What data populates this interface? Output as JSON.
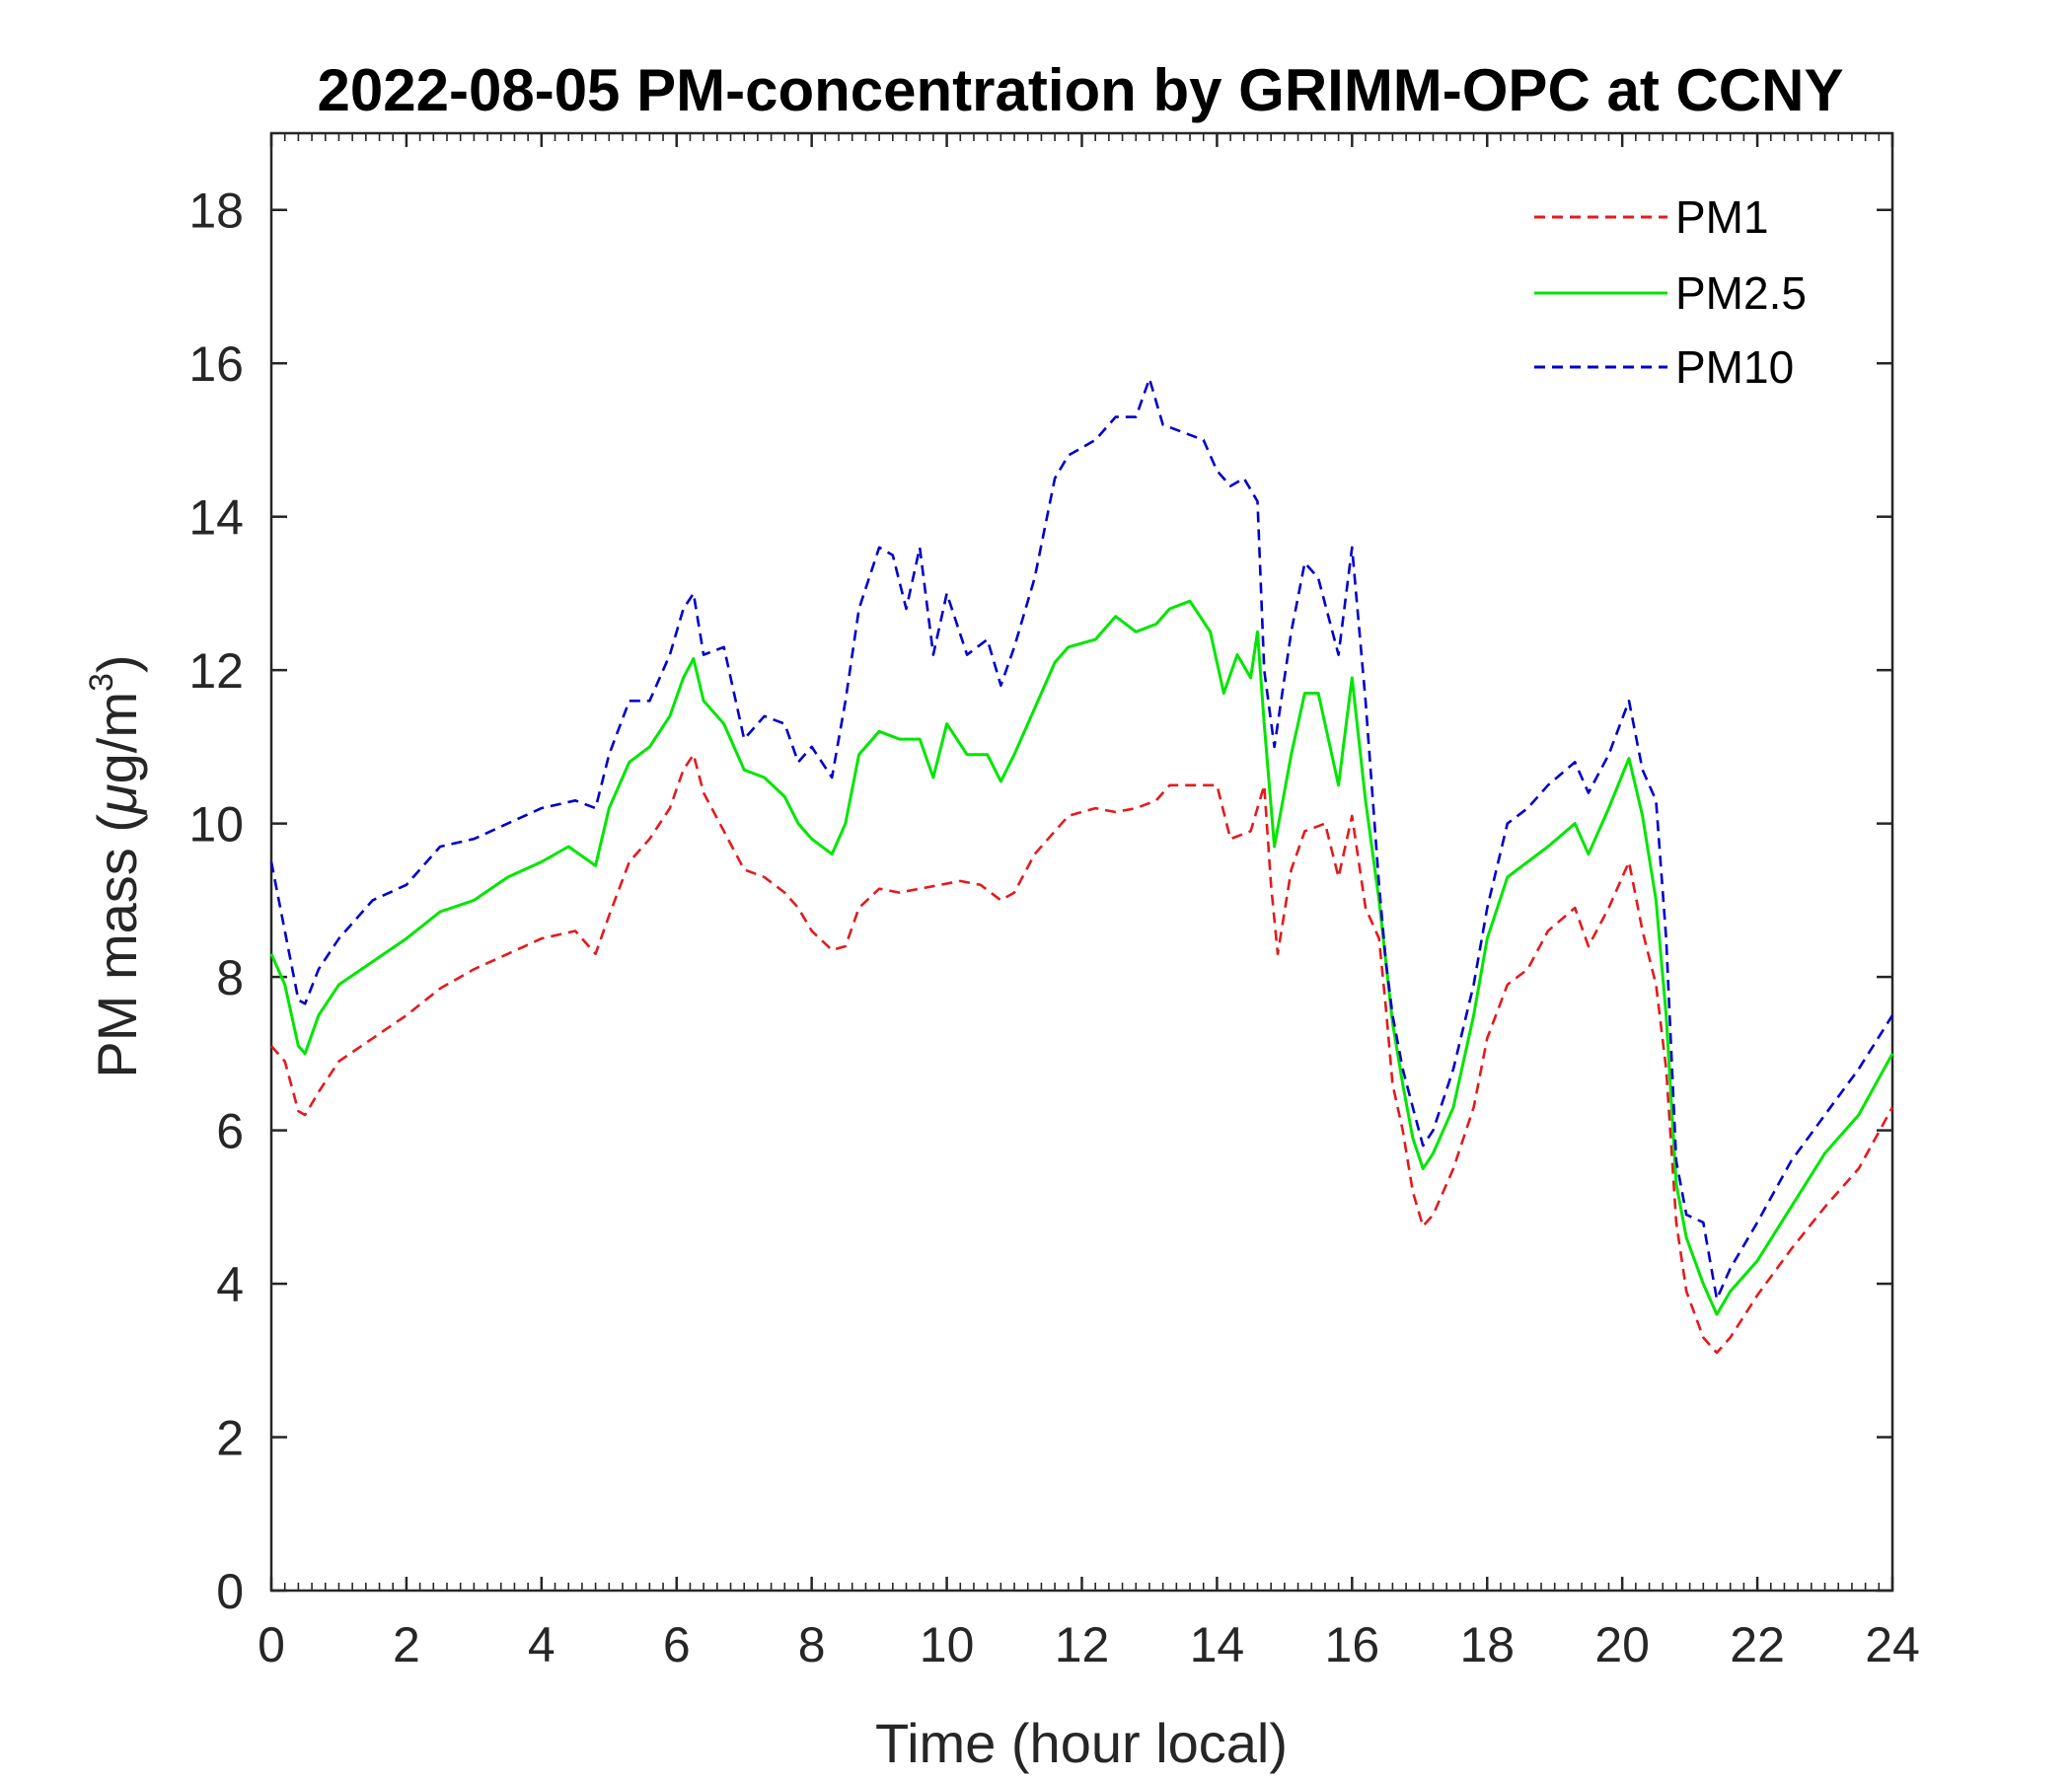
{
  "colors": {
    "pm1": "#e41a1c",
    "pm25": "#00e600",
    "pm10": "#0000cc",
    "axis": "#262626"
  },
  "chart_data": {
    "type": "line",
    "title": "2022-08-05 PM-concentration by GRIMM-OPC at CCNY",
    "xlabel": "Time (hour local)",
    "ylabel_main": "PM mass (",
    "ylabel_mu": "μ",
    "ylabel_unit": "g/m",
    "ylabel_sup": "3",
    "ylabel_close": ")",
    "xlim": [
      0,
      24
    ],
    "ylim": [
      0,
      19
    ],
    "xticks": [
      0,
      2,
      4,
      6,
      8,
      10,
      12,
      14,
      16,
      18,
      20,
      22,
      24
    ],
    "yticks": [
      0,
      2,
      4,
      6,
      8,
      10,
      12,
      14,
      16,
      18
    ],
    "xtick_labels": [
      "0",
      "2",
      "4",
      "6",
      "8",
      "10",
      "12",
      "14",
      "16",
      "18",
      "20",
      "22",
      "24"
    ],
    "ytick_labels": [
      "0",
      "2",
      "4",
      "6",
      "8",
      "10",
      "12",
      "14",
      "16",
      "18"
    ],
    "legend_position": "top-right",
    "series": [
      {
        "name": "PM1",
        "style": "dashed",
        "color_key": "pm1",
        "points": [
          [
            0,
            7.1
          ],
          [
            0.2,
            6.9
          ],
          [
            0.4,
            6.25
          ],
          [
            0.5,
            6.2
          ],
          [
            0.7,
            6.5
          ],
          [
            1.0,
            6.9
          ],
          [
            1.5,
            7.2
          ],
          [
            2.0,
            7.5
          ],
          [
            2.5,
            7.85
          ],
          [
            3.0,
            8.1
          ],
          [
            3.5,
            8.3
          ],
          [
            4.0,
            8.5
          ],
          [
            4.5,
            8.6
          ],
          [
            4.8,
            8.3
          ],
          [
            5.0,
            8.8
          ],
          [
            5.3,
            9.5
          ],
          [
            5.6,
            9.8
          ],
          [
            5.9,
            10.2
          ],
          [
            6.1,
            10.7
          ],
          [
            6.25,
            10.9
          ],
          [
            6.4,
            10.4
          ],
          [
            6.7,
            9.9
          ],
          [
            7.0,
            9.4
          ],
          [
            7.3,
            9.3
          ],
          [
            7.6,
            9.1
          ],
          [
            7.8,
            8.9
          ],
          [
            8.0,
            8.6
          ],
          [
            8.3,
            8.35
          ],
          [
            8.5,
            8.4
          ],
          [
            8.7,
            8.9
          ],
          [
            9.0,
            9.15
          ],
          [
            9.3,
            9.1
          ],
          [
            9.6,
            9.15
          ],
          [
            9.9,
            9.2
          ],
          [
            10.2,
            9.25
          ],
          [
            10.5,
            9.2
          ],
          [
            10.8,
            9.0
          ],
          [
            11.0,
            9.1
          ],
          [
            11.3,
            9.6
          ],
          [
            11.6,
            9.9
          ],
          [
            11.8,
            10.1
          ],
          [
            12.2,
            10.2
          ],
          [
            12.5,
            10.15
          ],
          [
            12.8,
            10.2
          ],
          [
            13.1,
            10.3
          ],
          [
            13.3,
            10.5
          ],
          [
            13.6,
            10.5
          ],
          [
            14.0,
            10.5
          ],
          [
            14.2,
            9.8
          ],
          [
            14.5,
            9.9
          ],
          [
            14.7,
            10.5
          ],
          [
            14.8,
            9.2
          ],
          [
            14.9,
            8.3
          ],
          [
            15.1,
            9.4
          ],
          [
            15.3,
            9.9
          ],
          [
            15.6,
            10.0
          ],
          [
            15.8,
            9.3
          ],
          [
            16.0,
            10.1
          ],
          [
            16.2,
            8.9
          ],
          [
            16.4,
            8.5
          ],
          [
            16.5,
            7.6
          ],
          [
            16.6,
            6.6
          ],
          [
            16.75,
            6.0
          ],
          [
            16.9,
            5.2
          ],
          [
            17.05,
            4.75
          ],
          [
            17.2,
            4.9
          ],
          [
            17.5,
            5.5
          ],
          [
            17.8,
            6.3
          ],
          [
            18.0,
            7.2
          ],
          [
            18.3,
            7.9
          ],
          [
            18.6,
            8.1
          ],
          [
            18.9,
            8.6
          ],
          [
            19.3,
            8.9
          ],
          [
            19.5,
            8.4
          ],
          [
            19.8,
            8.9
          ],
          [
            20.1,
            9.5
          ],
          [
            20.3,
            8.6
          ],
          [
            20.5,
            7.9
          ],
          [
            20.65,
            6.8
          ],
          [
            20.8,
            4.8
          ],
          [
            20.95,
            3.9
          ],
          [
            21.2,
            3.3
          ],
          [
            21.4,
            3.1
          ],
          [
            21.6,
            3.3
          ],
          [
            22.0,
            3.85
          ],
          [
            22.5,
            4.45
          ],
          [
            23.0,
            5.0
          ],
          [
            23.5,
            5.5
          ],
          [
            24.0,
            6.3
          ]
        ]
      },
      {
        "name": "PM2.5",
        "style": "solid",
        "color_key": "pm25",
        "points": [
          [
            0,
            8.3
          ],
          [
            0.2,
            7.9
          ],
          [
            0.4,
            7.1
          ],
          [
            0.5,
            7.0
          ],
          [
            0.7,
            7.5
          ],
          [
            1.0,
            7.9
          ],
          [
            1.5,
            8.2
          ],
          [
            2.0,
            8.5
          ],
          [
            2.5,
            8.85
          ],
          [
            3.0,
            9.0
          ],
          [
            3.5,
            9.3
          ],
          [
            4.0,
            9.5
          ],
          [
            4.4,
            9.7
          ],
          [
            4.8,
            9.45
          ],
          [
            5.0,
            10.2
          ],
          [
            5.3,
            10.8
          ],
          [
            5.6,
            11.0
          ],
          [
            5.9,
            11.4
          ],
          [
            6.1,
            11.9
          ],
          [
            6.25,
            12.15
          ],
          [
            6.4,
            11.6
          ],
          [
            6.7,
            11.3
          ],
          [
            7.0,
            10.7
          ],
          [
            7.3,
            10.6
          ],
          [
            7.6,
            10.35
          ],
          [
            7.8,
            10.0
          ],
          [
            8.0,
            9.8
          ],
          [
            8.3,
            9.6
          ],
          [
            8.5,
            10.0
          ],
          [
            8.7,
            10.9
          ],
          [
            9.0,
            11.2
          ],
          [
            9.3,
            11.1
          ],
          [
            9.6,
            11.1
          ],
          [
            9.8,
            10.6
          ],
          [
            10.0,
            11.3
          ],
          [
            10.3,
            10.9
          ],
          [
            10.6,
            10.9
          ],
          [
            10.8,
            10.55
          ],
          [
            11.0,
            10.9
          ],
          [
            11.3,
            11.5
          ],
          [
            11.6,
            12.1
          ],
          [
            11.8,
            12.3
          ],
          [
            12.2,
            12.4
          ],
          [
            12.5,
            12.7
          ],
          [
            12.8,
            12.5
          ],
          [
            13.1,
            12.6
          ],
          [
            13.3,
            12.8
          ],
          [
            13.6,
            12.9
          ],
          [
            13.9,
            12.5
          ],
          [
            14.1,
            11.7
          ],
          [
            14.3,
            12.2
          ],
          [
            14.5,
            11.9
          ],
          [
            14.6,
            12.5
          ],
          [
            14.7,
            11.3
          ],
          [
            14.85,
            9.7
          ],
          [
            15.1,
            10.9
          ],
          [
            15.3,
            11.7
          ],
          [
            15.5,
            11.7
          ],
          [
            15.8,
            10.5
          ],
          [
            16.0,
            11.9
          ],
          [
            16.2,
            10.3
          ],
          [
            16.4,
            9.0
          ],
          [
            16.5,
            8.2
          ],
          [
            16.6,
            7.4
          ],
          [
            16.75,
            6.6
          ],
          [
            16.9,
            5.9
          ],
          [
            17.05,
            5.5
          ],
          [
            17.2,
            5.7
          ],
          [
            17.5,
            6.3
          ],
          [
            17.8,
            7.5
          ],
          [
            18.0,
            8.5
          ],
          [
            18.3,
            9.3
          ],
          [
            18.6,
            9.5
          ],
          [
            18.9,
            9.7
          ],
          [
            19.3,
            10.0
          ],
          [
            19.5,
            9.6
          ],
          [
            19.8,
            10.2
          ],
          [
            20.1,
            10.85
          ],
          [
            20.3,
            10.1
          ],
          [
            20.5,
            9.0
          ],
          [
            20.65,
            7.5
          ],
          [
            20.8,
            5.3
          ],
          [
            20.95,
            4.6
          ],
          [
            21.2,
            4.0
          ],
          [
            21.4,
            3.6
          ],
          [
            21.6,
            3.9
          ],
          [
            22.0,
            4.3
          ],
          [
            22.5,
            5.0
          ],
          [
            23.0,
            5.7
          ],
          [
            23.5,
            6.2
          ],
          [
            24.0,
            7.0
          ]
        ]
      },
      {
        "name": "PM10",
        "style": "dashed",
        "color_key": "pm10",
        "points": [
          [
            0,
            9.5
          ],
          [
            0.2,
            8.6
          ],
          [
            0.4,
            7.7
          ],
          [
            0.5,
            7.65
          ],
          [
            0.7,
            8.1
          ],
          [
            1.0,
            8.5
          ],
          [
            1.5,
            9.0
          ],
          [
            2.0,
            9.2
          ],
          [
            2.5,
            9.7
          ],
          [
            3.0,
            9.8
          ],
          [
            3.5,
            10.0
          ],
          [
            4.0,
            10.2
          ],
          [
            4.5,
            10.3
          ],
          [
            4.8,
            10.2
          ],
          [
            5.0,
            10.9
          ],
          [
            5.3,
            11.6
          ],
          [
            5.6,
            11.6
          ],
          [
            5.9,
            12.2
          ],
          [
            6.1,
            12.8
          ],
          [
            6.25,
            13.0
          ],
          [
            6.4,
            12.2
          ],
          [
            6.7,
            12.3
          ],
          [
            7.0,
            11.1
          ],
          [
            7.3,
            11.4
          ],
          [
            7.6,
            11.3
          ],
          [
            7.8,
            10.8
          ],
          [
            8.0,
            11.0
          ],
          [
            8.3,
            10.6
          ],
          [
            8.5,
            11.6
          ],
          [
            8.7,
            12.8
          ],
          [
            9.0,
            13.6
          ],
          [
            9.2,
            13.5
          ],
          [
            9.4,
            12.8
          ],
          [
            9.6,
            13.6
          ],
          [
            9.8,
            12.2
          ],
          [
            10.0,
            13.0
          ],
          [
            10.3,
            12.2
          ],
          [
            10.6,
            12.4
          ],
          [
            10.8,
            11.8
          ],
          [
            11.0,
            12.3
          ],
          [
            11.3,
            13.2
          ],
          [
            11.6,
            14.5
          ],
          [
            11.8,
            14.8
          ],
          [
            12.2,
            15.0
          ],
          [
            12.5,
            15.3
          ],
          [
            12.8,
            15.3
          ],
          [
            13.0,
            15.8
          ],
          [
            13.2,
            15.2
          ],
          [
            13.5,
            15.1
          ],
          [
            13.8,
            15.0
          ],
          [
            14.0,
            14.6
          ],
          [
            14.2,
            14.4
          ],
          [
            14.4,
            14.5
          ],
          [
            14.6,
            14.2
          ],
          [
            14.7,
            12.0
          ],
          [
            14.85,
            11.0
          ],
          [
            15.1,
            12.5
          ],
          [
            15.3,
            13.4
          ],
          [
            15.5,
            13.2
          ],
          [
            15.8,
            12.2
          ],
          [
            16.0,
            13.6
          ],
          [
            16.2,
            11.6
          ],
          [
            16.4,
            9.2
          ],
          [
            16.5,
            8.2
          ],
          [
            16.6,
            7.5
          ],
          [
            16.75,
            6.8
          ],
          [
            16.9,
            6.3
          ],
          [
            17.05,
            5.8
          ],
          [
            17.2,
            6.0
          ],
          [
            17.5,
            6.8
          ],
          [
            17.8,
            7.9
          ],
          [
            18.0,
            8.9
          ],
          [
            18.3,
            10.0
          ],
          [
            18.6,
            10.2
          ],
          [
            18.9,
            10.5
          ],
          [
            19.3,
            10.8
          ],
          [
            19.5,
            10.4
          ],
          [
            19.8,
            10.9
          ],
          [
            20.1,
            11.6
          ],
          [
            20.3,
            10.7
          ],
          [
            20.5,
            10.3
          ],
          [
            20.65,
            8.5
          ],
          [
            20.8,
            5.6
          ],
          [
            20.95,
            4.9
          ],
          [
            21.2,
            4.8
          ],
          [
            21.4,
            3.8
          ],
          [
            21.6,
            4.2
          ],
          [
            22.0,
            4.8
          ],
          [
            22.5,
            5.6
          ],
          [
            23.0,
            6.2
          ],
          [
            23.5,
            6.8
          ],
          [
            24.0,
            7.5
          ]
        ]
      }
    ]
  }
}
